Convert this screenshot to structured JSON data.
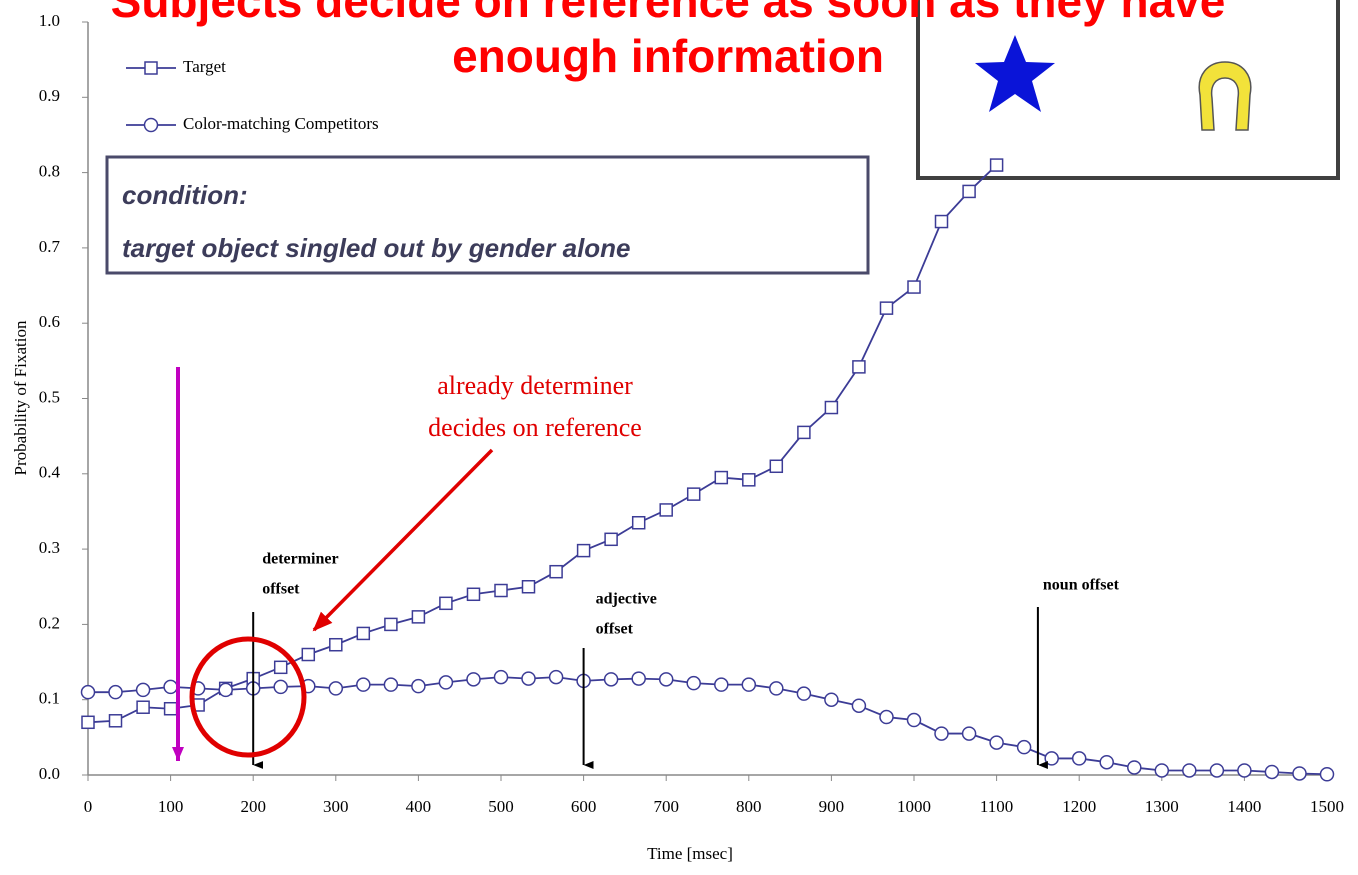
{
  "chart_data": {
    "type": "line",
    "title_lines": [
      "Subjects decide on reference as soon as they have",
      "enough information"
    ],
    "xlabel": "Time [msec]",
    "ylabel": "Probability of Fixation",
    "x": [
      0,
      33.3,
      66.7,
      100,
      133.3,
      166.7,
      200,
      233.3,
      266.7,
      300,
      333.3,
      366.7,
      400,
      433.3,
      466.7,
      500,
      533.3,
      566.7,
      600,
      633.3,
      666.7,
      700,
      733.3,
      766.7,
      800,
      833.3,
      866.7,
      900,
      933.3,
      966.7,
      1000,
      1033.3,
      1066.7,
      1100,
      1133.3,
      1166.7,
      1200,
      1233.3,
      1266.7,
      1300,
      1333.3,
      1366.7,
      1400,
      1433.3,
      1466.7,
      1500
    ],
    "series": [
      {
        "name": "Target",
        "color": "#3c3c96",
        "marker": "square",
        "values": [
          0.07,
          0.072,
          0.09,
          0.088,
          0.093,
          0.115,
          0.128,
          0.143,
          0.16,
          0.173,
          0.188,
          0.2,
          0.21,
          0.228,
          0.24,
          0.245,
          0.25,
          0.27,
          0.298,
          0.313,
          0.335,
          0.352,
          0.373,
          0.395,
          0.392,
          0.41,
          0.455,
          0.488,
          0.542,
          0.62,
          0.648,
          0.735,
          0.775,
          0.81,
          null,
          null,
          null,
          null,
          null,
          null,
          null,
          null,
          null,
          null,
          null,
          null
        ]
      },
      {
        "name": "Color-matching Competitors",
        "color": "#3c3c96",
        "marker": "circle",
        "values": [
          0.11,
          0.11,
          0.113,
          0.117,
          0.115,
          0.113,
          0.115,
          0.117,
          0.118,
          0.115,
          0.12,
          0.12,
          0.118,
          0.123,
          0.127,
          0.13,
          0.128,
          0.13,
          0.125,
          0.127,
          0.128,
          0.127,
          0.122,
          0.12,
          0.12,
          0.115,
          0.108,
          0.1,
          0.092,
          0.077,
          0.073,
          0.055,
          0.055,
          0.043,
          0.037,
          0.022,
          0.022,
          0.017,
          0.01,
          0.006,
          0.006,
          0.006,
          0.006,
          0.004,
          0.002,
          0.001
        ]
      }
    ],
    "xlim": [
      0,
      1500
    ],
    "xticks": [
      0,
      100,
      200,
      300,
      400,
      500,
      600,
      700,
      800,
      900,
      1000,
      1100,
      1200,
      1300,
      1400,
      1500
    ],
    "ylim": [
      0,
      1
    ],
    "yticks": [
      {
        "value": 0,
        "label": "0.0"
      },
      0.1,
      0.2,
      0.3,
      0.4,
      0.5,
      0.6,
      0.7,
      0.8,
      0.9,
      {
        "value": 1,
        "label": "1.0"
      }
    ],
    "events": [
      {
        "x": 200,
        "lines": [
          "determiner",
          "offset"
        ]
      },
      {
        "x": 600,
        "lines": [
          "adjective",
          "offset"
        ]
      },
      {
        "x": 1150,
        "lines": [
          "noun offset"
        ]
      }
    ],
    "condition_lines": [
      "condition:",
      "target object singled out by gender alone"
    ],
    "note_lines": [
      "already determiner",
      "decides on reference"
    ]
  }
}
